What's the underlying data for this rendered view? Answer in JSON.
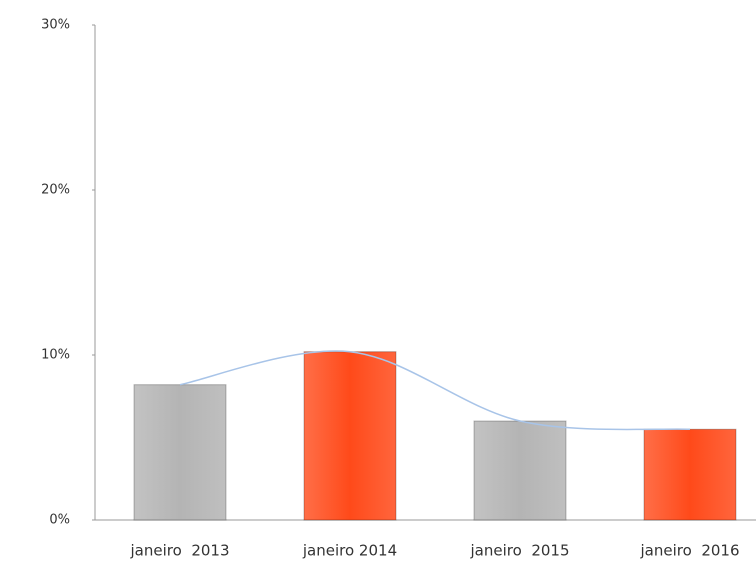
{
  "chart_data": {
    "type": "bar",
    "categories": [
      "janeiro  2013",
      "janeiro 2014",
      "janeiro  2015",
      "janeiro  2016"
    ],
    "values": [
      8.2,
      10.2,
      6.0,
      5.5
    ],
    "colors": [
      "#b4b4b4",
      "#ff4a1a",
      "#b4b4b4",
      "#ff4a1a"
    ],
    "line_color": "#a8c4e8",
    "ylim": [
      0,
      30
    ],
    "yticks": [
      {
        "value": 0,
        "label": "0%"
      },
      {
        "value": 10,
        "label": "10%"
      },
      {
        "value": 20,
        "label": "20%"
      },
      {
        "value": 30,
        "label": "30%"
      }
    ]
  }
}
